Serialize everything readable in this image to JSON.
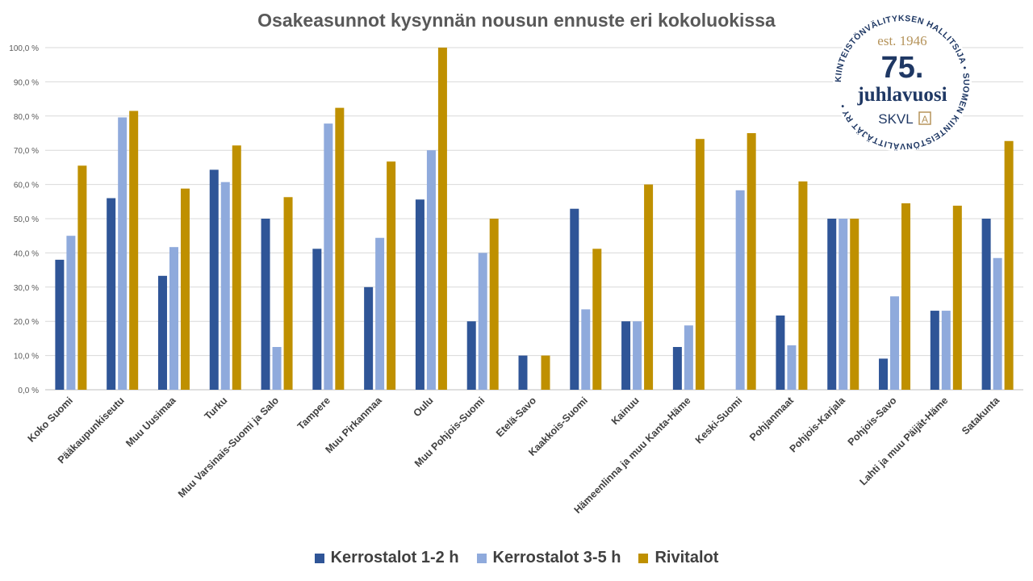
{
  "chart_data": {
    "type": "bar",
    "title": "Osakeasunnot kysynnän nousun ennuste eri kokoluokissa",
    "xlabel": "",
    "ylabel": "",
    "ylim": [
      0,
      100
    ],
    "yticks": [
      "0,0 %",
      "10,0 %",
      "20,0 %",
      "30,0 %",
      "40,0 %",
      "50,0 %",
      "60,0 %",
      "70,0 %",
      "80,0 %",
      "90,0 %",
      "100,0 %"
    ],
    "grid": true,
    "legend_position": "bottom",
    "categories": [
      "Koko Suomi",
      "Pääkaupunkiseutu",
      "Muu Uusimaa",
      "Turku",
      "Muu Varsinais-Suomi ja Salo",
      "Tampere",
      "Muu Pirkanmaa",
      "Oulu",
      "Muu Pohjois-Suomi",
      "Etelä-Savo",
      "Kaakkois-Suomi",
      "Kainuu",
      "Hämeenlinna ja muu Kanta-Häme",
      "Keski-Suomi",
      "Pohjanmaat",
      "Pohjois-Karjala",
      "Pohjois-Savo",
      "Lahti ja muu Päijät-Häme",
      "Satakunta"
    ],
    "series": [
      {
        "name": "Kerrostalot 1-2 h",
        "color": "#2f5597",
        "values": [
          38.0,
          56.0,
          33.3,
          64.3,
          50.0,
          41.2,
          30.0,
          55.6,
          20.0,
          10.0,
          52.9,
          20.0,
          12.5,
          0.0,
          21.7,
          50.0,
          9.1,
          23.1,
          50.0
        ]
      },
      {
        "name": "Kerrostalot 3-5 h",
        "color": "#8faadc",
        "values": [
          45.0,
          79.6,
          41.7,
          60.7,
          12.5,
          77.8,
          44.4,
          70.0,
          40.0,
          0.0,
          23.5,
          20.0,
          18.8,
          58.3,
          13.0,
          50.0,
          27.3,
          23.1,
          38.5
        ]
      },
      {
        "name": "Rivitalot",
        "color": "#bf9000",
        "values": [
          65.5,
          81.5,
          58.8,
          71.4,
          56.3,
          82.4,
          66.7,
          100.0,
          50.0,
          10.0,
          41.2,
          60.0,
          73.3,
          75.0,
          60.9,
          50.0,
          54.5,
          53.8,
          72.7
        ]
      }
    ]
  },
  "logo": {
    "ring_text": "KIINTEISTÖNVÄLITYKSEN HALLITSIJA • SUOMEN KIINTEISTÖNVÄLITTÄJÄT RY •",
    "est": "est. 1946",
    "number": "75.",
    "word": "juhlavuosi",
    "brand": "SKVL",
    "brand_mark": "A",
    "colors": {
      "navy": "#1f3864",
      "gold": "#b5935a"
    }
  }
}
